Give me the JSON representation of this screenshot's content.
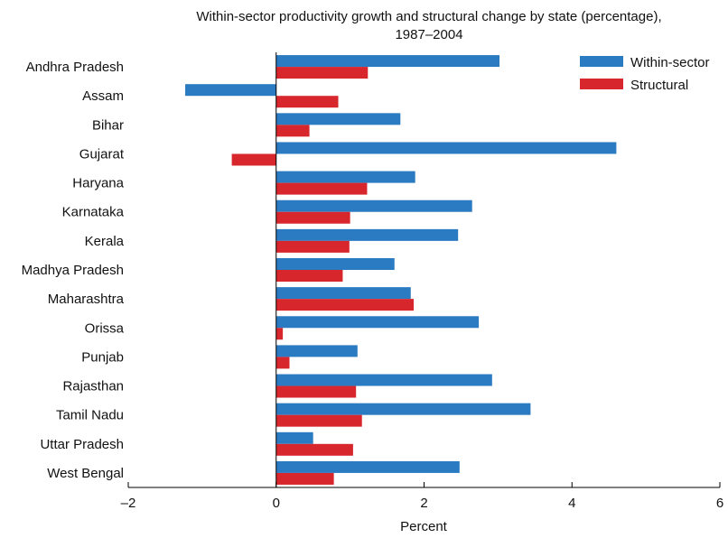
{
  "chart_data": {
    "type": "bar",
    "orientation": "horizontal",
    "title_lines": [
      "Within-sector productivity growth and structural change by state (percentage),",
      "1987–2004"
    ],
    "xlabel": "Percent",
    "ylabel": "",
    "xlim": [
      -2,
      6
    ],
    "xticks": [
      -2,
      0,
      2,
      4,
      6
    ],
    "xtick_labels": [
      "–2",
      "0",
      "2",
      "4",
      "6"
    ],
    "grid": false,
    "legend_position": "top-right",
    "categories": [
      "Andhra Pradesh",
      "Assam",
      "Bihar",
      "Gujarat",
      "Haryana",
      "Karnataka",
      "Kerala",
      "Madhya Pradesh",
      "Maharashtra",
      "Orissa",
      "Punjab",
      "Rajasthan",
      "Tamil Nadu",
      "Uttar Pradesh",
      "West Bengal"
    ],
    "series": [
      {
        "name": "Within-sector",
        "color": "#2b7bc2",
        "values": [
          3.02,
          -1.23,
          1.68,
          4.6,
          1.88,
          2.65,
          2.46,
          1.6,
          1.82,
          2.74,
          1.1,
          2.92,
          3.44,
          0.5,
          2.48
        ]
      },
      {
        "name": "Structural",
        "color": "#d7262c",
        "values": [
          1.24,
          0.84,
          0.45,
          -0.6,
          1.23,
          1.0,
          0.99,
          0.9,
          1.86,
          0.09,
          0.18,
          1.08,
          1.16,
          1.04,
          0.78
        ]
      }
    ]
  }
}
